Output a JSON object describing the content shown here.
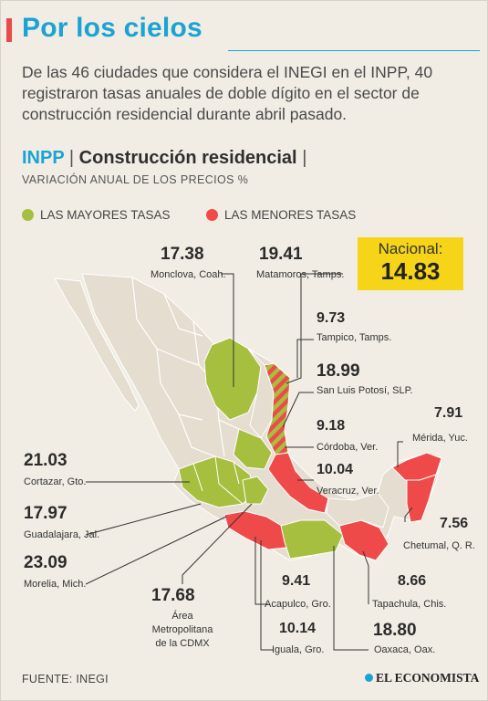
{
  "header": {
    "title": "Por los cielos",
    "intro": "De las 46 ciudades que considera el INEGI en el INPP, 40 registraron tasas anuales de doble dígito en el sector de construcción residencial durante abril pasado."
  },
  "subhead": {
    "index": "INPP",
    "sep1": "|",
    "sector": "Construcción residencial",
    "sep2": "|"
  },
  "caption": "VARIACIÓN ANUAL DE LOS PRECIOS %",
  "legend": {
    "high_label": "LAS MAYORES TASAS",
    "low_label": "LAS MENORES TASAS",
    "high_color": "#a6bf3f",
    "low_color": "#ef4a4a"
  },
  "nacional": {
    "label": "Nacional:",
    "value": "14.83"
  },
  "cities": [
    {
      "value": "17.38",
      "name": "Monclova, Coah."
    },
    {
      "value": "19.41",
      "name": "Matamoros, Tamps."
    },
    {
      "value": "9.73",
      "name": "Tampico, Tamps."
    },
    {
      "value": "18.99",
      "name": "San Luis Potosí, SLP."
    },
    {
      "value": "7.91",
      "name": "Mérida, Yuc."
    },
    {
      "value": "9.18",
      "name": "Córdoba, Ver."
    },
    {
      "value": "10.04",
      "name": "Veracruz, Ver."
    },
    {
      "value": "7.56",
      "name": "Chetumal, Q. R."
    },
    {
      "value": "21.03",
      "name": "Cortazar, Gto."
    },
    {
      "value": "17.97",
      "name": "Guadalajara, Jal."
    },
    {
      "value": "23.09",
      "name": "Morelia, Mich."
    },
    {
      "value": "8.66",
      "name": "Tapachula, Chis."
    },
    {
      "value": "9.41",
      "name": "Acapulco, Gro."
    },
    {
      "value": "10.14",
      "name": "Iguala, Gro."
    },
    {
      "value": "18.80",
      "name": "Oaxaca, Oax."
    }
  ],
  "cdmx": {
    "value": "17.68",
    "line1": "Área",
    "line2": "Metropolitana",
    "line3": "de la CDMX"
  },
  "footer": {
    "source": "FUENTE: INEGI",
    "brand": "EL ECONOMISTA"
  }
}
